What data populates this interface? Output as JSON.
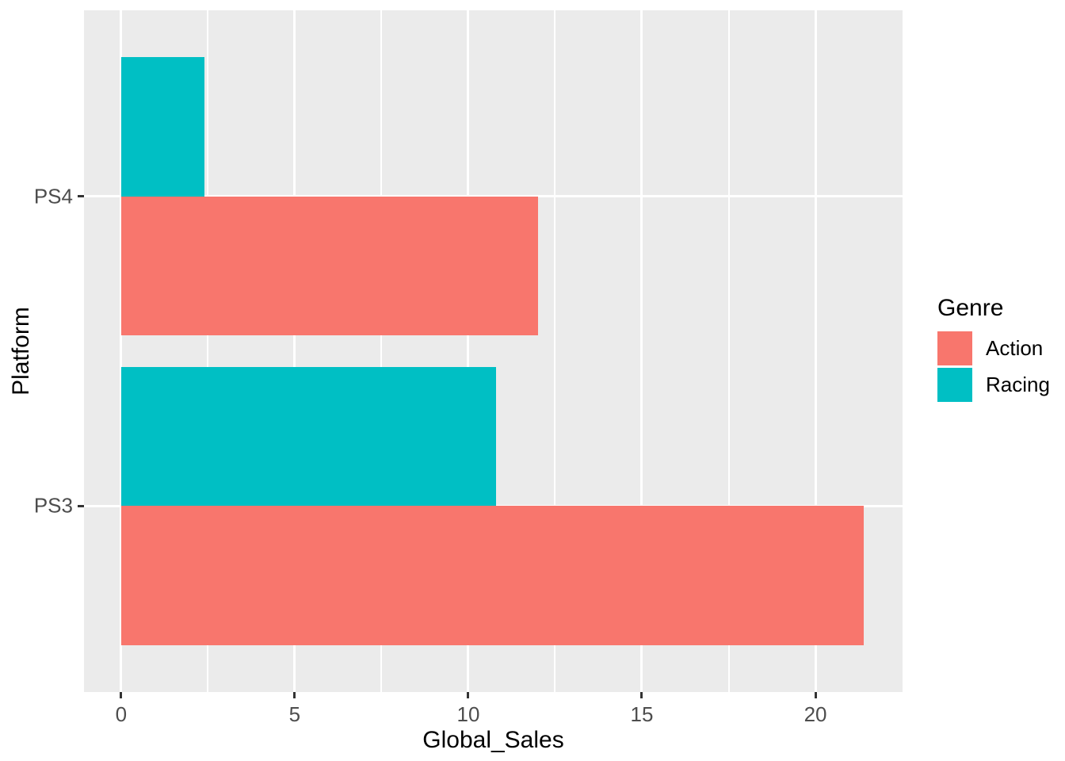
{
  "chart_data": {
    "type": "bar",
    "orientation": "horizontal",
    "title": "",
    "xlabel": "Global_Sales",
    "ylabel": "Platform",
    "categories": [
      "PS4",
      "PS3"
    ],
    "series": [
      {
        "name": "Action",
        "color": "#F8766D",
        "values": [
          12.0,
          21.4
        ]
      },
      {
        "name": "Racing",
        "color": "#00BFC4",
        "values": [
          2.4,
          10.8
        ]
      }
    ],
    "dodge_order_top_to_bottom": [
      "Racing",
      "Action"
    ],
    "x_major_ticks": [
      0,
      5,
      10,
      15,
      20
    ],
    "x_minor_ticks": [
      2.5,
      7.5,
      12.5,
      17.5
    ],
    "xlim": [
      -1.07,
      22.51
    ],
    "band_domain_pad": 0.6,
    "bar_group_width": 0.9,
    "grid": true,
    "legend": {
      "title": "Genre",
      "position": "right",
      "entries": [
        {
          "label": "Action",
          "color": "#F8766D"
        },
        {
          "label": "Racing",
          "color": "#00BFC4"
        }
      ]
    },
    "colors": {
      "panel_bg": "#EBEBEB",
      "grid": "#FFFFFF",
      "tick_mark": "#333333",
      "tick_text": "#4D4D4D",
      "title_text": "#000000"
    }
  }
}
